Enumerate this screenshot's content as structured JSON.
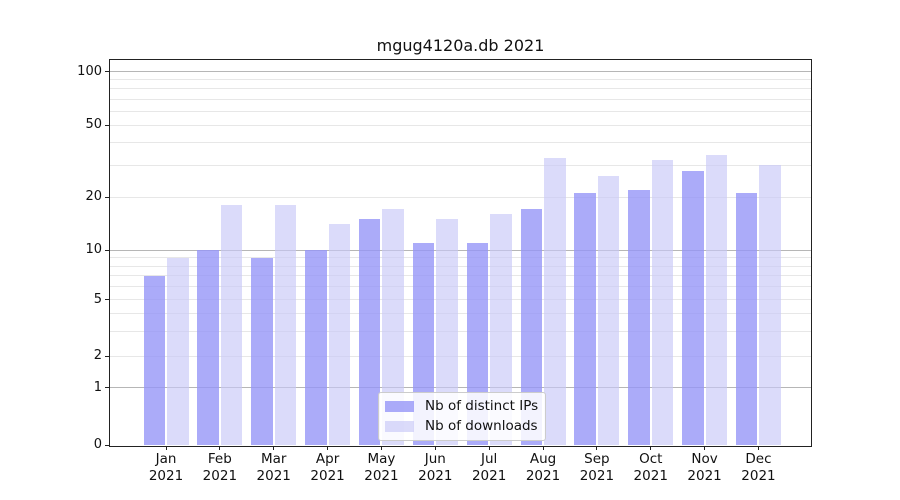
{
  "title": "mgug4120a.db 2021",
  "chart_data": {
    "type": "bar",
    "title": "mgug4120a.db 2021",
    "categories": [
      "Jan",
      "Feb",
      "Mar",
      "Apr",
      "May",
      "Jun",
      "Jul",
      "Aug",
      "Sep",
      "Oct",
      "Nov",
      "Dec"
    ],
    "x_tick_year": "2021",
    "series": [
      {
        "name": "Nb of distinct IPs",
        "color": "#9696f8",
        "opacity": 0.8,
        "values": [
          7,
          10,
          9,
          10,
          15,
          11,
          11,
          17,
          21,
          22,
          28,
          21
        ]
      },
      {
        "name": "Nb of downloads",
        "color": "#c8c8f7",
        "opacity": 0.65,
        "values": [
          9,
          18,
          18,
          14,
          17,
          15,
          16,
          33,
          26,
          32,
          34,
          30
        ]
      }
    ],
    "xlabel": "",
    "ylabel": "",
    "yscale": "symlog",
    "ylim": [
      0,
      117
    ],
    "y_ticks": [
      0,
      1,
      2,
      5,
      10,
      20,
      50,
      100
    ],
    "y_major_gridlines": [
      1,
      10,
      100
    ],
    "y_minor_gridlines": [
      2,
      3,
      4,
      5,
      6,
      7,
      8,
      9,
      20,
      30,
      40,
      50,
      60,
      70,
      80,
      90
    ],
    "grid": true,
    "legend_position": "lower center"
  }
}
